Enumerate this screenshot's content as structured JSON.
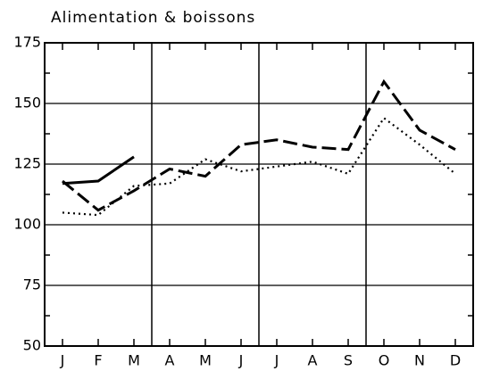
{
  "chart_data": {
    "type": "line",
    "title": "Alimentation & boissons",
    "categories": [
      "J",
      "F",
      "M",
      "A",
      "M",
      "J",
      "J",
      "A",
      "S",
      "O",
      "N",
      "D"
    ],
    "series": [
      {
        "color": "#000000",
        "style": "solid",
        "values": [
          117,
          118,
          128,
          null,
          null,
          null,
          null,
          null,
          null,
          null,
          null,
          null
        ]
      },
      {
        "color": "#000000",
        "style": "dashed",
        "values": [
          118,
          106,
          114,
          123,
          120,
          133,
          135,
          132,
          131,
          159,
          139,
          131
        ]
      },
      {
        "color": "#000000",
        "style": "dotted",
        "values": [
          105,
          104,
          116,
          117,
          127,
          122,
          124,
          126,
          121,
          144,
          133,
          121
        ]
      }
    ],
    "ylim": [
      50,
      175
    ],
    "yticks": [
      50,
      75,
      100,
      125,
      150,
      175
    ],
    "grid": true
  }
}
